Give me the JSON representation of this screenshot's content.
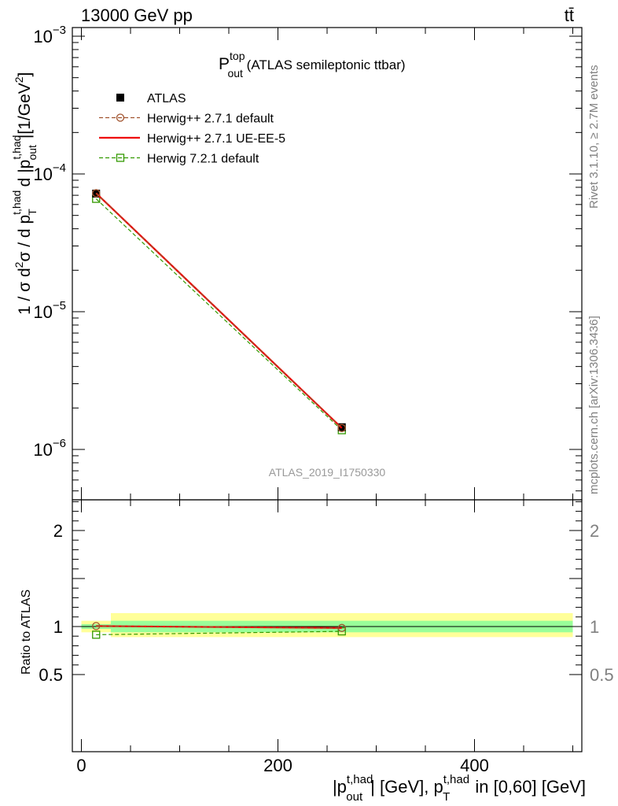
{
  "header": {
    "energy_label": "13000 GeV pp",
    "process_label": "tt̄"
  },
  "side_labels": {
    "rivet": "Rivet 3.1.10, ≥ 2.7M events",
    "mcplots": "mcplots.cern.ch [arXiv:1306.3436]"
  },
  "watermark": "ATLAS_2019_I1750330",
  "plot_title": {
    "main": "P",
    "sup": "top",
    "sub": "out",
    "rest": " (ATLAS semileptonic ttbar)"
  },
  "colors": {
    "atlas": "#000000",
    "herwig271_default": "#a0522d",
    "herwig271_ueee5": "#ee0000",
    "herwig721_default": "#339900",
    "band_inner": "#99ff99",
    "band_outer": "#ffff99"
  },
  "legend": [
    {
      "id": "atlas",
      "label": "ATLAS",
      "marker": "filled-square",
      "line": "none"
    },
    {
      "id": "herwig271_default",
      "label": "Herwig++ 2.7.1 default",
      "marker": "open-circle",
      "line": "dashed"
    },
    {
      "id": "herwig271_ueee5",
      "label": "Herwig++ 2.7.1 UE-EE-5",
      "marker": "none",
      "line": "solid"
    },
    {
      "id": "herwig721_default",
      "label": "Herwig 7.2.1 default",
      "marker": "open-square",
      "line": "dashed"
    }
  ],
  "chart_data": [
    {
      "type": "scatter",
      "panel": "main",
      "yscale": "log",
      "ylim": [
        4.5e-07,
        0.0011
      ],
      "xlim": [
        -10,
        510
      ],
      "y_tick_labels": [
        {
          "mant": "10",
          "exp": "−3",
          "value": 0.001
        },
        {
          "mant": "10",
          "exp": "−4",
          "value": 0.0001
        },
        {
          "mant": "10",
          "exp": "−5",
          "value": 1e-05
        },
        {
          "mant": "10",
          "exp": "−6",
          "value": 1e-06
        }
      ],
      "ylabel": "1 / σ d²σ / d p_T^{t,had} d |p_out^{t,had}| [1/GeV²]",
      "x": [
        15,
        265
      ],
      "series": [
        {
          "name": "ATLAS",
          "id": "atlas",
          "values": [
            7.2e-05,
            1.45e-06
          ]
        },
        {
          "name": "Herwig++ 2.7.1 default",
          "id": "herwig271_default",
          "values": [
            7.25e-05,
            1.43e-06
          ]
        },
        {
          "name": "Herwig++ 2.7.1 UE-EE-5",
          "id": "herwig271_ueee5",
          "values": [
            7.25e-05,
            1.43e-06
          ]
        },
        {
          "name": "Herwig 7.2.1 default",
          "id": "herwig721_default",
          "values": [
            6.6e-05,
            1.38e-06
          ]
        }
      ]
    },
    {
      "type": "scatter",
      "panel": "ratio",
      "ylim": [
        0.4,
        2.4
      ],
      "xlim": [
        -10,
        510
      ],
      "ylabel": "Ratio to ATLAS",
      "xlabel": "|p_out^{t,had}| [GeV], p_T^{t,had} in [0,60] [GeV]",
      "x_ticks": [
        0,
        200,
        400
      ],
      "x_tick_labels": [
        "0",
        "200",
        "400"
      ],
      "y_ticks": [
        0.5,
        1,
        2
      ],
      "y_tick_labels": [
        "0.5",
        "1",
        "2"
      ],
      "x": [
        15,
        265
      ],
      "bins": [
        [
          0,
          30
        ],
        [
          30,
          500
        ]
      ],
      "band_inner": [
        [
          0.975,
          1.025
        ],
        [
          0.94,
          1.06
        ]
      ],
      "band_outer": [
        [
          0.94,
          1.06
        ],
        [
          0.89,
          1.14
        ]
      ],
      "series": [
        {
          "name": "Herwig++ 2.7.1 default",
          "id": "herwig271_default",
          "values": [
            1.005,
            0.985
          ]
        },
        {
          "name": "Herwig++ 2.7.1 UE-EE-5",
          "id": "herwig271_ueee5",
          "values": [
            1.005,
            0.985
          ]
        },
        {
          "name": "Herwig 7.2.1 default",
          "id": "herwig721_default",
          "values": [
            0.915,
            0.95
          ]
        }
      ]
    }
  ]
}
